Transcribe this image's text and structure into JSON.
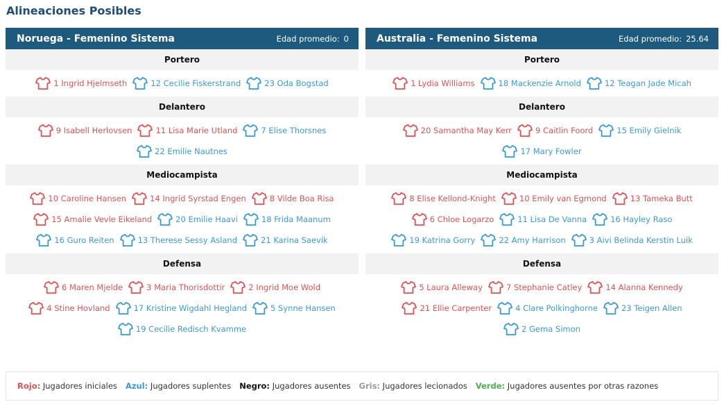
{
  "page": {
    "title": "Alineaciones Posibles"
  },
  "colors": {
    "starter": "#e05353",
    "sub": "#3b9ad8",
    "header": "#1e5a7d",
    "absent": "#111111",
    "injured": "#999999",
    "other": "#4caf50"
  },
  "teams": [
    {
      "name": "Noruega - Femenino Sistema",
      "age_label": "Edad promedio:",
      "age_value": "0",
      "positions": [
        {
          "name": "Portero",
          "rows": [
            [
              {
                "label": "1 Ingrid Hjelmseth",
                "type": "starter"
              },
              {
                "label": "12 Cecilie Fiskerstrand",
                "type": "sub"
              },
              {
                "label": "23 Oda Bogstad",
                "type": "sub"
              }
            ]
          ]
        },
        {
          "name": "Delantero",
          "rows": [
            [
              {
                "label": "9 Isabell Herlovsen",
                "type": "starter"
              },
              {
                "label": "11 Lisa Marie Utland",
                "type": "starter"
              },
              {
                "label": "7 Elise Thorsnes",
                "type": "sub"
              }
            ],
            [
              {
                "label": "22 Emilie Nautnes",
                "type": "sub"
              }
            ]
          ]
        },
        {
          "name": "Mediocampista",
          "rows": [
            [
              {
                "label": "10 Caroline Hansen",
                "type": "starter"
              },
              {
                "label": "14 Ingrid Syrstad Engen",
                "type": "starter"
              },
              {
                "label": "8 Vilde Boa Risa",
                "type": "starter"
              }
            ],
            [
              {
                "label": "15 Amalie Vevle Eikeland",
                "type": "starter"
              },
              {
                "label": "20 Emilie Haavi",
                "type": "sub"
              },
              {
                "label": "18 Frida Maanum",
                "type": "sub"
              }
            ],
            [
              {
                "label": "16 Guro Reiten",
                "type": "sub"
              },
              {
                "label": "13 Therese Sessy Asland",
                "type": "sub"
              },
              {
                "label": "21 Karina Saevik",
                "type": "sub"
              }
            ]
          ]
        },
        {
          "name": "Defensa",
          "rows": [
            [
              {
                "label": "6 Maren Mjelde",
                "type": "starter"
              },
              {
                "label": "3 Maria Thorisdottir",
                "type": "starter"
              },
              {
                "label": "2 Ingrid Moe Wold",
                "type": "starter"
              }
            ],
            [
              {
                "label": "4 Stine Hovland",
                "type": "starter"
              },
              {
                "label": "17 Kristine Wigdahl Hegland",
                "type": "sub"
              },
              {
                "label": "5 Synne Hansen",
                "type": "sub"
              }
            ],
            [
              {
                "label": "19 Cecilie Redisch Kvamme",
                "type": "sub"
              }
            ]
          ]
        }
      ]
    },
    {
      "name": "Australia - Femenino Sistema",
      "age_label": "Edad promedio:",
      "age_value": "25.64",
      "positions": [
        {
          "name": "Portero",
          "rows": [
            [
              {
                "label": "1 Lydia Williams",
                "type": "starter"
              },
              {
                "label": "18 Mackenzie Arnold",
                "type": "sub"
              },
              {
                "label": "12 Teagan Jade Micah",
                "type": "sub"
              }
            ]
          ]
        },
        {
          "name": "Delantero",
          "rows": [
            [
              {
                "label": "20 Samantha May Kerr",
                "type": "starter"
              },
              {
                "label": "9 Caitlin Foord",
                "type": "starter"
              },
              {
                "label": "15 Emily Gielnik",
                "type": "sub"
              }
            ],
            [
              {
                "label": "17 Mary Fowler",
                "type": "sub"
              }
            ]
          ]
        },
        {
          "name": "Mediocampista",
          "rows": [
            [
              {
                "label": "8 Elise Kellond-Knight",
                "type": "starter"
              },
              {
                "label": "10 Emily van Egmond",
                "type": "starter"
              },
              {
                "label": "13 Tameka Butt",
                "type": "starter"
              }
            ],
            [
              {
                "label": "6 Chloe Logarzo",
                "type": "starter"
              },
              {
                "label": "11 Lisa De Vanna",
                "type": "sub"
              },
              {
                "label": "16 Hayley Raso",
                "type": "sub"
              }
            ],
            [
              {
                "label": "19 Katrina Gorry",
                "type": "sub"
              },
              {
                "label": "22 Amy Harrison",
                "type": "sub"
              },
              {
                "label": "3 Aivi Belinda Kerstin Luik",
                "type": "sub"
              }
            ]
          ]
        },
        {
          "name": "Defensa",
          "rows": [
            [
              {
                "label": "5 Laura Alleway",
                "type": "starter"
              },
              {
                "label": "7 Stephanie Catley",
                "type": "starter"
              },
              {
                "label": "14 Alanna Kennedy",
                "type": "starter"
              }
            ],
            [
              {
                "label": "21 Ellie Carpenter",
                "type": "starter"
              },
              {
                "label": "4 Clare Polkinghorne",
                "type": "sub"
              },
              {
                "label": "23 Teigen Allen",
                "type": "sub"
              }
            ],
            [
              {
                "label": "2 Gema Simon",
                "type": "sub"
              }
            ]
          ]
        }
      ]
    }
  ],
  "legend": [
    {
      "key": "Rojo:",
      "text": "Jugadores iniciales",
      "color": "#e05353"
    },
    {
      "key": "Azul:",
      "text": "Jugadores suplentes",
      "color": "#3b9ad8"
    },
    {
      "key": "Negro:",
      "text": "Jugadores ausentes",
      "color": "#111111"
    },
    {
      "key": "Gris:",
      "text": "Jugadores lecionados",
      "color": "#999999"
    },
    {
      "key": "Verde:",
      "text": "Jugadores ausentes por otras razones",
      "color": "#4caf50"
    }
  ]
}
